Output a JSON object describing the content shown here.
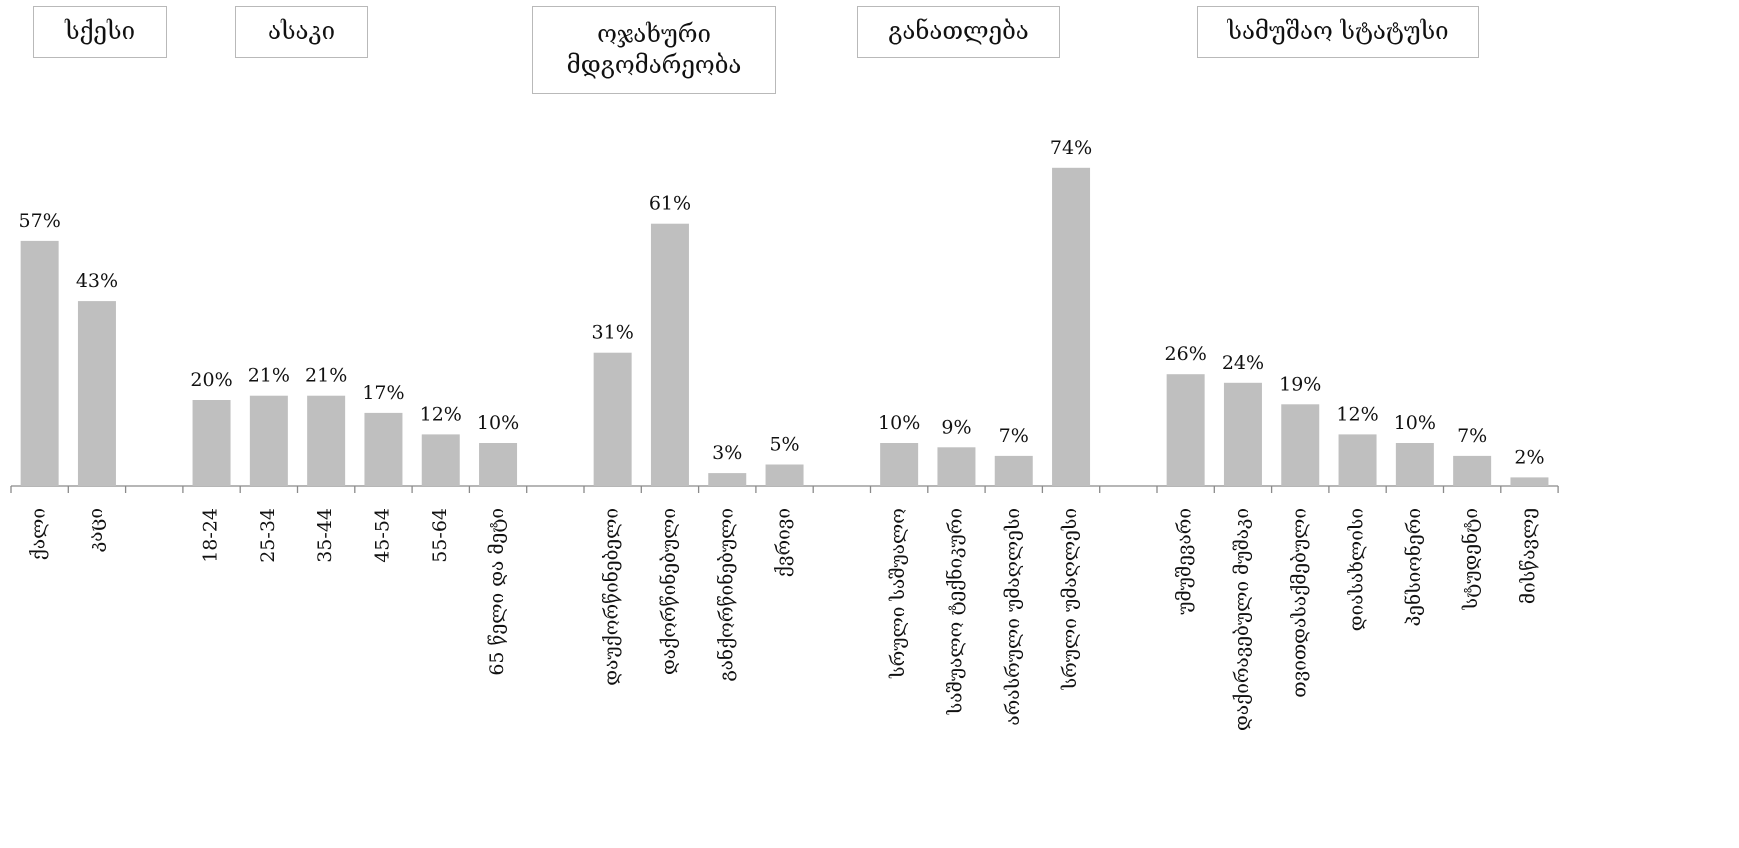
{
  "chart_data": {
    "type": "bar",
    "bar_color": "#bfbfbf",
    "axis_color": "#8a8a8a",
    "unit": "%",
    "groups": [
      {
        "name": "სქესი",
        "categories": [
          "ქალი",
          "კაცი"
        ],
        "values": [
          57,
          43
        ]
      },
      {
        "name": "ასაკი",
        "categories": [
          "18-24",
          "25-34",
          "35-44",
          "45-54",
          "55-64",
          "65 წელი და მეტი"
        ],
        "values": [
          20,
          21,
          21,
          17,
          12,
          10
        ]
      },
      {
        "name": "ოჯახური მდგომარეობა",
        "categories": [
          "დაუქორწინებელი",
          "დაქორწინებული",
          "განქორწინებული",
          "ქვრივი"
        ],
        "values": [
          31,
          61,
          3,
          5
        ]
      },
      {
        "name": "განათლება",
        "categories": [
          "სრული საშუალო",
          "საშუალო ტექნიკური",
          "არასრული უმაღლესი",
          "სრული უმაღლესი"
        ],
        "values": [
          10,
          9,
          7,
          74
        ]
      },
      {
        "name": "სამუშაო სტატუსი",
        "categories": [
          "უმუშევარი",
          "დაქირავებული მუშაკი",
          "თვითდასაქმებული",
          "დიასახლისი",
          "პენსიონერი",
          "სტუდენტი",
          "მისწავლე"
        ],
        "values": [
          26,
          24,
          19,
          12,
          10,
          7,
          2
        ]
      }
    ]
  }
}
